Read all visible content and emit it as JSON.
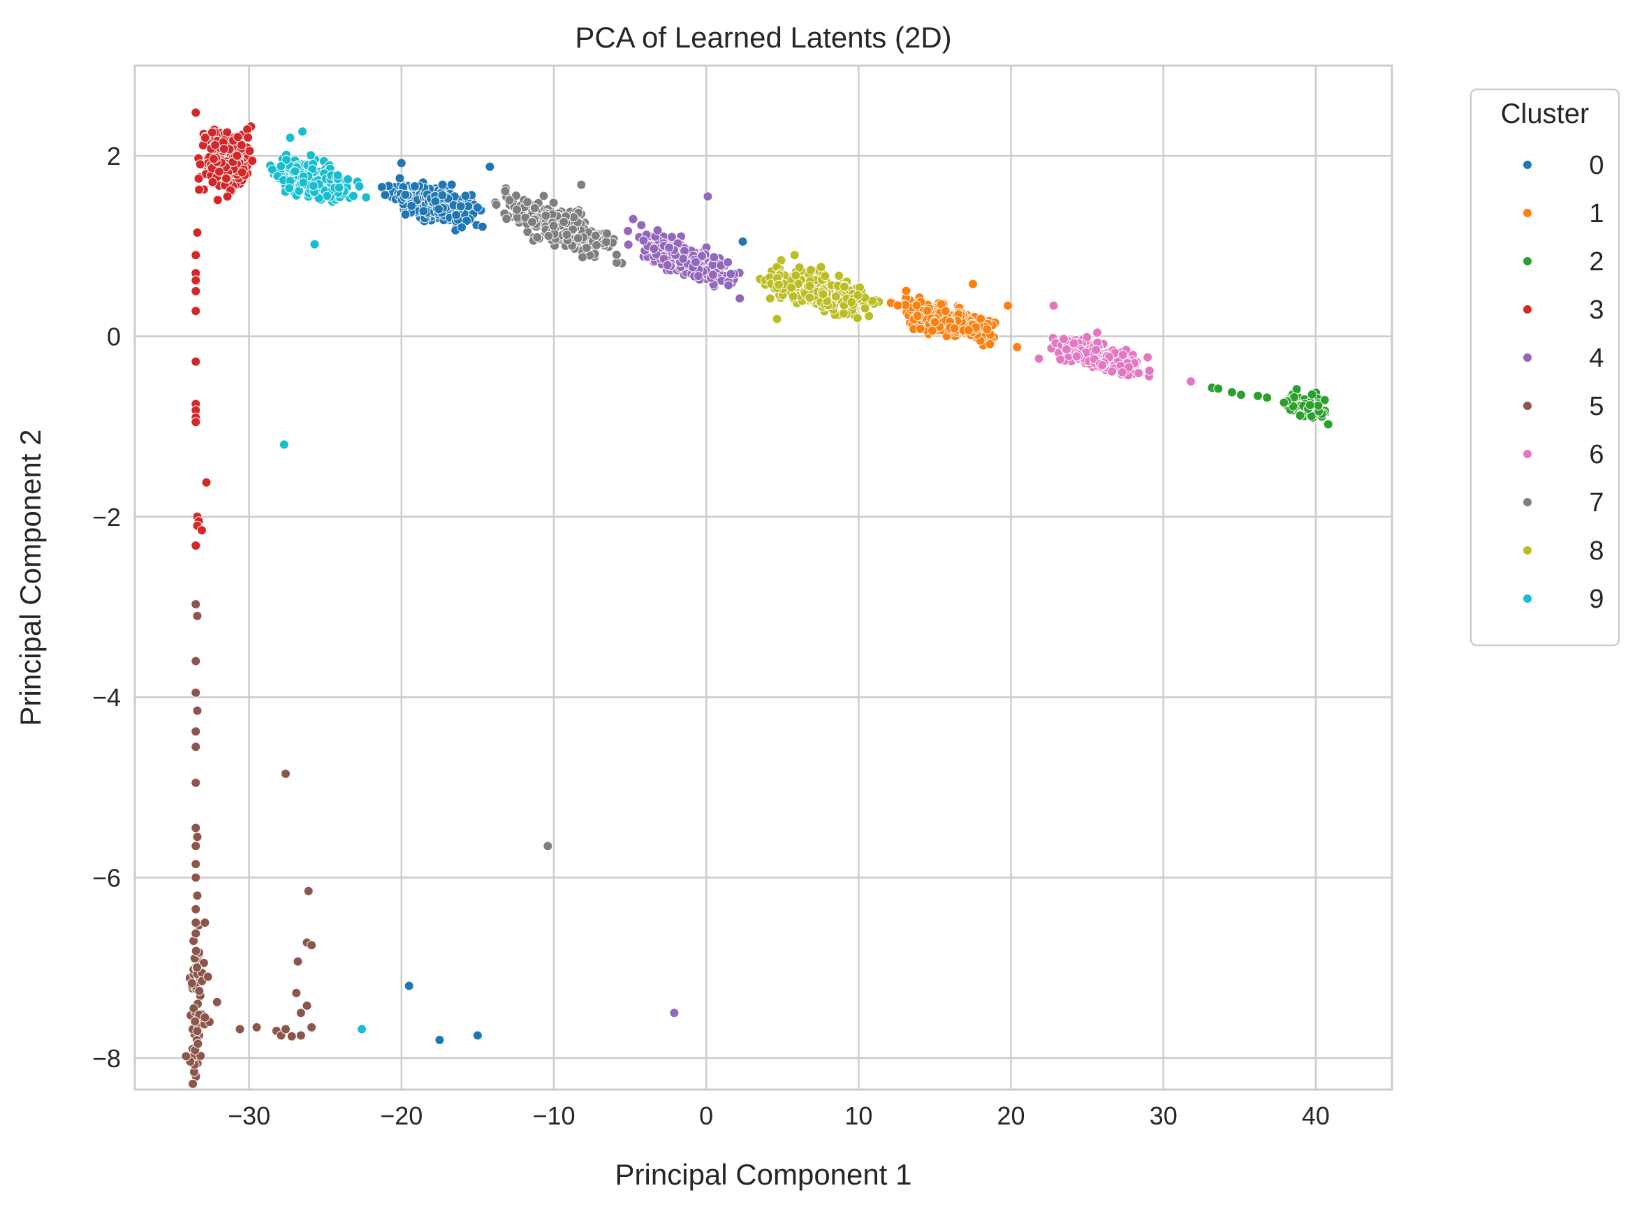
{
  "chart_data": {
    "type": "scatter",
    "title": "PCA of Learned Latents (2D)",
    "xlabel": "Principal Component 1",
    "ylabel": "Principal Component 2",
    "xlim": [
      -37.5,
      45
    ],
    "ylim": [
      -8.35,
      3.0
    ],
    "xticks": [
      -30,
      -20,
      -10,
      0,
      10,
      20,
      30,
      40
    ],
    "xtick_labels": [
      "−30",
      "−20",
      "−10",
      "0",
      "10",
      "20",
      "30",
      "40"
    ],
    "yticks": [
      -8,
      -6,
      -4,
      -2,
      0,
      2
    ],
    "ytick_labels": [
      "−8",
      "−6",
      "−4",
      "−2",
      "0",
      "2"
    ],
    "grid": true,
    "legend": {
      "title": "Cluster",
      "placement": "outside-right"
    },
    "series": [
      {
        "name": "0",
        "color": "#1f77b4",
        "core": {
          "x_range": [
            -21.5,
            -14.0
          ],
          "y_at_x_start": 1.62,
          "y_at_x_end": 1.34,
          "spread": 0.09,
          "count": 320
        },
        "outliers": [
          [
            -19.5,
            -7.2
          ],
          [
            -17.5,
            -7.8
          ],
          [
            -15.0,
            -7.75
          ],
          [
            -14.2,
            1.88
          ],
          [
            2.4,
            1.05
          ],
          [
            -20.0,
            1.92
          ]
        ]
      },
      {
        "name": "1",
        "color": "#ff7f0e",
        "core": {
          "x_range": [
            11.5,
            20.0
          ],
          "y_at_x_start": 0.38,
          "y_at_x_end": -0.02,
          "spread": 0.08,
          "count": 300
        },
        "outliers": [
          [
            17.5,
            0.58
          ],
          [
            19.8,
            0.34
          ],
          [
            20.4,
            -0.12
          ]
        ]
      },
      {
        "name": "2",
        "color": "#2ca02c",
        "core": {
          "x_range": [
            37.5,
            41.2
          ],
          "y_at_x_start": -0.72,
          "y_at_x_end": -0.82,
          "spread": 0.05,
          "count": 110
        },
        "outliers": [
          [
            33.2,
            -0.57
          ],
          [
            33.6,
            -0.58
          ],
          [
            34.5,
            -0.62
          ],
          [
            35.1,
            -0.65
          ],
          [
            36.2,
            -0.66
          ],
          [
            36.8,
            -0.68
          ]
        ]
      },
      {
        "name": "3",
        "color": "#d62728",
        "core": {
          "x_range": [
            -33.6,
            -29.5
          ],
          "y_at_x_start": 1.95,
          "y_at_x_end": 1.92,
          "spread": 0.16,
          "count": 220
        },
        "outliers": [
          [
            -33.5,
            2.48
          ],
          [
            -33.4,
            1.15
          ],
          [
            -33.5,
            0.9
          ],
          [
            -33.5,
            0.7
          ],
          [
            -33.5,
            0.62
          ],
          [
            -33.5,
            0.5
          ],
          [
            -33.5,
            0.28
          ],
          [
            -33.5,
            -0.28
          ],
          [
            -33.5,
            -0.75
          ],
          [
            -33.5,
            -0.82
          ],
          [
            -33.5,
            -0.9
          ],
          [
            -33.5,
            -0.95
          ],
          [
            -32.8,
            -1.62
          ],
          [
            -33.4,
            -2.0
          ],
          [
            -33.3,
            -2.05
          ],
          [
            -33.4,
            -2.1
          ],
          [
            -33.1,
            -2.15
          ],
          [
            -33.5,
            -2.32
          ],
          [
            -31.5,
            1.75
          ]
        ]
      },
      {
        "name": "4",
        "color": "#9467bd",
        "core": {
          "x_range": [
            -5.5,
            2.8
          ],
          "y_at_x_start": 1.12,
          "y_at_x_end": 0.6,
          "spread": 0.08,
          "count": 320
        },
        "outliers": [
          [
            0.1,
            1.55
          ],
          [
            -2.1,
            -7.5
          ],
          [
            -4.8,
            1.3
          ],
          [
            2.2,
            0.42
          ]
        ]
      },
      {
        "name": "5",
        "color": "#8c564b",
        "core": {
          "x_range": [
            -33.55,
            -33.35
          ],
          "y_at_x_start": -7.3,
          "y_at_x_end": -7.3,
          "spread": 0.4,
          "count": 60
        },
        "outliers": [
          [
            -33.5,
            -2.97
          ],
          [
            -33.4,
            -3.1
          ],
          [
            -33.5,
            -3.6
          ],
          [
            -33.5,
            -3.95
          ],
          [
            -33.4,
            -4.15
          ],
          [
            -33.5,
            -4.38
          ],
          [
            -33.5,
            -4.55
          ],
          [
            -33.5,
            -4.95
          ],
          [
            -33.5,
            -5.45
          ],
          [
            -33.4,
            -5.55
          ],
          [
            -33.5,
            -5.65
          ],
          [
            -33.5,
            -5.85
          ],
          [
            -33.5,
            -6.0
          ],
          [
            -33.4,
            -6.2
          ],
          [
            -33.5,
            -6.35
          ],
          [
            -33.5,
            -6.5
          ],
          [
            -33.5,
            -6.62
          ],
          [
            -32.9,
            -6.5
          ],
          [
            -32.7,
            -7.1
          ],
          [
            -32.6,
            -7.6
          ],
          [
            -32.9,
            -7.55
          ],
          [
            -32.1,
            -7.38
          ],
          [
            -30.6,
            -7.68
          ],
          [
            -29.5,
            -7.66
          ],
          [
            -28.2,
            -7.7
          ],
          [
            -27.9,
            -7.75
          ],
          [
            -27.6,
            -7.68
          ],
          [
            -27.2,
            -7.76
          ],
          [
            -27.6,
            -4.85
          ],
          [
            -26.6,
            -7.75
          ],
          [
            -26.9,
            -7.28
          ],
          [
            -26.8,
            -6.93
          ],
          [
            -26.6,
            -7.5
          ],
          [
            -26.2,
            -7.42
          ],
          [
            -26.2,
            -6.72
          ],
          [
            -25.9,
            -6.75
          ],
          [
            -26.1,
            -6.15
          ],
          [
            -25.9,
            -7.66
          ]
        ]
      },
      {
        "name": "6",
        "color": "#e377c2",
        "core": {
          "x_range": [
            21.8,
            29.8
          ],
          "y_at_x_start": -0.08,
          "y_at_x_end": -0.38,
          "spread": 0.07,
          "count": 270
        },
        "outliers": [
          [
            22.8,
            0.34
          ],
          [
            31.8,
            -0.5
          ]
        ]
      },
      {
        "name": "7",
        "color": "#7f7f7f",
        "core": {
          "x_range": [
            -14.2,
            -5.3
          ],
          "y_at_x_start": 1.46,
          "y_at_x_end": 0.98,
          "spread": 0.09,
          "count": 330
        },
        "outliers": [
          [
            -8.2,
            1.68
          ],
          [
            -10.4,
            -5.65
          ]
        ]
      },
      {
        "name": "8",
        "color": "#bcbd22",
        "core": {
          "x_range": [
            2.8,
            12.0
          ],
          "y_at_x_start": 0.7,
          "y_at_x_end": 0.32,
          "spread": 0.09,
          "count": 320
        },
        "outliers": [
          [
            5.8,
            0.9
          ],
          [
            4.2,
            0.42
          ]
        ]
      },
      {
        "name": "9",
        "color": "#17becf",
        "core": {
          "x_range": [
            -29.5,
            -22.0
          ],
          "y_at_x_start": 1.86,
          "y_at_x_end": 1.58,
          "spread": 0.1,
          "count": 250
        },
        "outliers": [
          [
            -27.7,
            -1.2
          ],
          [
            -25.7,
            1.02
          ],
          [
            -22.6,
            -7.68
          ],
          [
            -27.3,
            2.2
          ],
          [
            -26.5,
            2.27
          ]
        ]
      }
    ]
  }
}
